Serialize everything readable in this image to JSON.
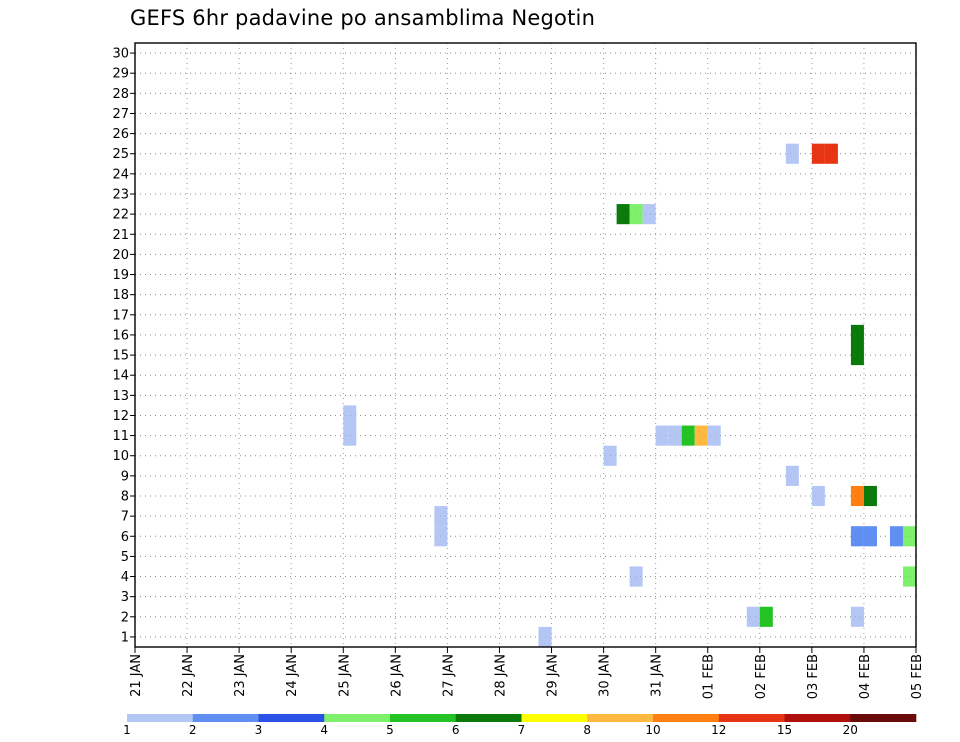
{
  "chart_data": {
    "type": "heatmap",
    "title": "GEFS 6hr padavine po ansamblima Negotin",
    "xlabel": "",
    "ylabel": "",
    "x_tick_labels": [
      "21 JAN",
      "22 JAN",
      "23 JAN",
      "24 JAN",
      "25 JAN",
      "26 JAN",
      "27 JAN",
      "28 JAN",
      "29 JAN",
      "30 JAN",
      "31 JAN",
      "01 FEB",
      "02 FEB",
      "03 FEB",
      "04 FEB",
      "05 FEB"
    ],
    "y_ticks": [
      1,
      2,
      3,
      4,
      5,
      6,
      7,
      8,
      9,
      10,
      11,
      12,
      13,
      14,
      15,
      16,
      17,
      18,
      19,
      20,
      21,
      22,
      23,
      24,
      25,
      26,
      27,
      28,
      29,
      30
    ],
    "xlim_days": [
      0,
      15
    ],
    "ylim": [
      0.5,
      30.5
    ],
    "grid": true,
    "legend_position": "bottom colorbar",
    "colorbar": {
      "labels": [
        "1",
        "2",
        "3",
        "4",
        "5",
        "6",
        "7",
        "8",
        "10",
        "12",
        "15",
        "20"
      ],
      "colors": [
        "#b4c6f4",
        "#5f8ff2",
        "#2a53e6",
        "#7ef16a",
        "#22c322",
        "#0a7a0a",
        "#ffff00",
        "#ffb840",
        "#ff7f10",
        "#e83412",
        "#b0100c",
        "#6a0a0a"
      ]
    },
    "cells": [
      {
        "t": "25 JAN",
        "h": 0,
        "member": 11,
        "color": "#b4c6f4"
      },
      {
        "t": "25 JAN",
        "h": 0,
        "member": 12,
        "color": "#b4c6f4"
      },
      {
        "t": "26 JAN",
        "h": 18,
        "member": 6,
        "color": "#b4c6f4"
      },
      {
        "t": "26 JAN",
        "h": 18,
        "member": 7,
        "color": "#b4c6f4"
      },
      {
        "t": "28 JAN",
        "h": 18,
        "member": 1,
        "color": "#b4c6f4"
      },
      {
        "t": "30 JAN",
        "h": 0,
        "member": 10,
        "color": "#b4c6f4"
      },
      {
        "t": "30 JAN",
        "h": 6,
        "member": 22,
        "color": "#0a7a0a"
      },
      {
        "t": "30 JAN",
        "h": 12,
        "member": 4,
        "color": "#b4c6f4"
      },
      {
        "t": "30 JAN",
        "h": 12,
        "member": 22,
        "color": "#7ef16a"
      },
      {
        "t": "30 JAN",
        "h": 18,
        "member": 22,
        "color": "#b4c6f4"
      },
      {
        "t": "31 JAN",
        "h": 0,
        "member": 11,
        "color": "#b4c6f4"
      },
      {
        "t": "31 JAN",
        "h": 6,
        "member": 11,
        "color": "#b4c6f4"
      },
      {
        "t": "31 JAN",
        "h": 12,
        "member": 11,
        "color": "#22c322"
      },
      {
        "t": "31 JAN",
        "h": 18,
        "member": 11,
        "color": "#ffb840"
      },
      {
        "t": "01 FEB",
        "h": 0,
        "member": 11,
        "color": "#b4c6f4"
      },
      {
        "t": "01 FEB",
        "h": 18,
        "member": 2,
        "color": "#b4c6f4"
      },
      {
        "t": "02 FEB",
        "h": 0,
        "member": 2,
        "color": "#22c322"
      },
      {
        "t": "02 FEB",
        "h": 12,
        "member": 9,
        "color": "#b4c6f4"
      },
      {
        "t": "02 FEB",
        "h": 12,
        "member": 25,
        "color": "#b4c6f4"
      },
      {
        "t": "03 FEB",
        "h": 0,
        "member": 8,
        "color": "#b4c6f4"
      },
      {
        "t": "03 FEB",
        "h": 0,
        "member": 25,
        "color": "#e83412"
      },
      {
        "t": "03 FEB",
        "h": 6,
        "member": 25,
        "color": "#e83412"
      },
      {
        "t": "03 FEB",
        "h": 18,
        "member": 2,
        "color": "#b4c6f4"
      },
      {
        "t": "03 FEB",
        "h": 18,
        "member": 6,
        "color": "#5f8ff2"
      },
      {
        "t": "03 FEB",
        "h": 18,
        "member": 8,
        "color": "#ff7f10"
      },
      {
        "t": "03 FEB",
        "h": 18,
        "member": 15,
        "color": "#0a7a0a"
      },
      {
        "t": "03 FEB",
        "h": 18,
        "member": 16,
        "color": "#0a7a0a"
      },
      {
        "t": "04 FEB",
        "h": 0,
        "member": 6,
        "color": "#5f8ff2"
      },
      {
        "t": "04 FEB",
        "h": 0,
        "member": 8,
        "color": "#0a7a0a"
      },
      {
        "t": "04 FEB",
        "h": 12,
        "member": 6,
        "color": "#5f8ff2"
      },
      {
        "t": "04 FEB",
        "h": 18,
        "member": 4,
        "color": "#7ef16a"
      },
      {
        "t": "04 FEB",
        "h": 18,
        "member": 6,
        "color": "#7ef16a"
      }
    ]
  }
}
